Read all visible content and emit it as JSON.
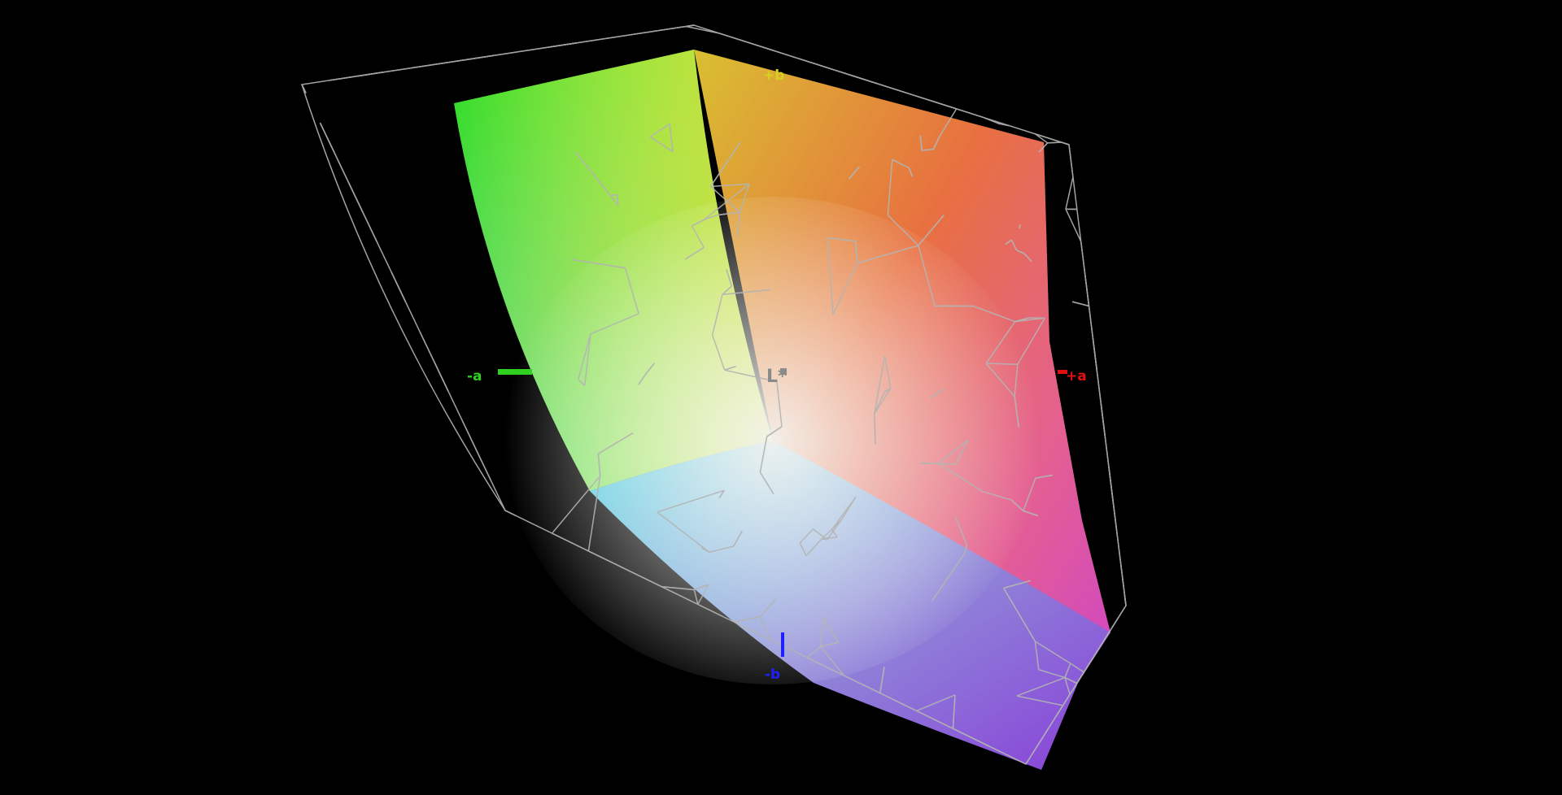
{
  "axes": {
    "plus_b": {
      "label": "+b",
      "color": "#d8d020"
    },
    "minus_a": {
      "label": "-a",
      "color": "#30d020"
    },
    "l_star": {
      "label": "L*",
      "color": "#8a8a8a"
    },
    "plus_a": {
      "label": "+a",
      "color": "#e01010"
    },
    "minus_b": {
      "label": "-b",
      "color": "#2020ff"
    }
  },
  "colors": {
    "background": "#000000",
    "wireframe": "#b4b4b4"
  }
}
